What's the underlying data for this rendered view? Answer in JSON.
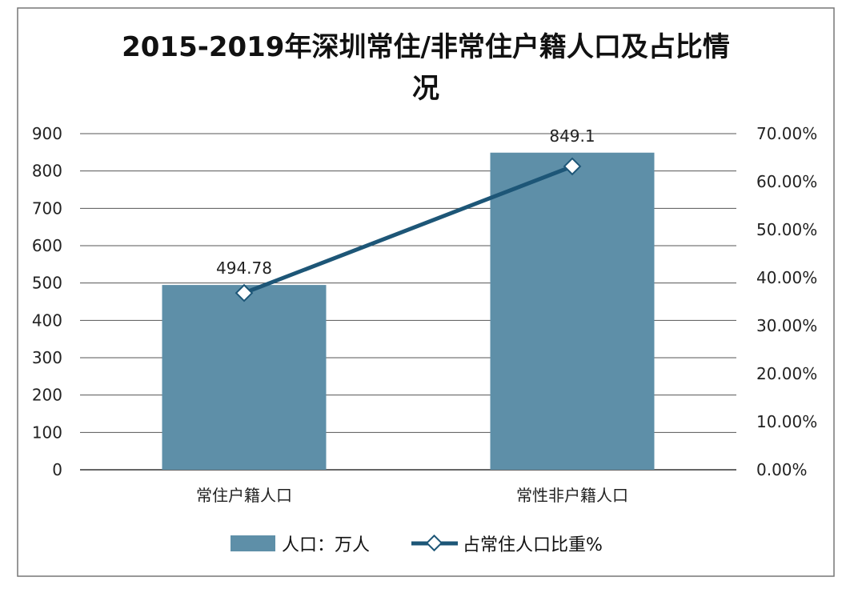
{
  "chart_data": {
    "type": "bar+line",
    "title_line1": "2015-2019年深圳常住/非常住户籍人口及占比情",
    "title_line2": "况",
    "categories": [
      "常住户籍人口",
      "常性非户籍人口"
    ],
    "series": [
      {
        "name": "人口：万人",
        "type": "bar",
        "axis": "left",
        "values": [
          494.78,
          849.1
        ],
        "labels": [
          "494.78",
          "849.1"
        ],
        "color": "#5e8fa8"
      },
      {
        "name": "占常住人口比重%",
        "type": "line",
        "axis": "right",
        "values": [
          36.82,
          63.18
        ],
        "color": "#1d5677"
      }
    ],
    "left_axis": {
      "ylim": [
        0,
        900
      ],
      "ticks": [
        "0",
        "100",
        "200",
        "300",
        "400",
        "500",
        "600",
        "700",
        "800",
        "900"
      ]
    },
    "right_axis": {
      "ylim": [
        0,
        70
      ],
      "ticks": [
        "0.00%",
        "10.00%",
        "20.00%",
        "30.00%",
        "40.00%",
        "50.00%",
        "60.00%",
        "70.00%"
      ]
    },
    "grid": true,
    "legend_position": "bottom"
  }
}
